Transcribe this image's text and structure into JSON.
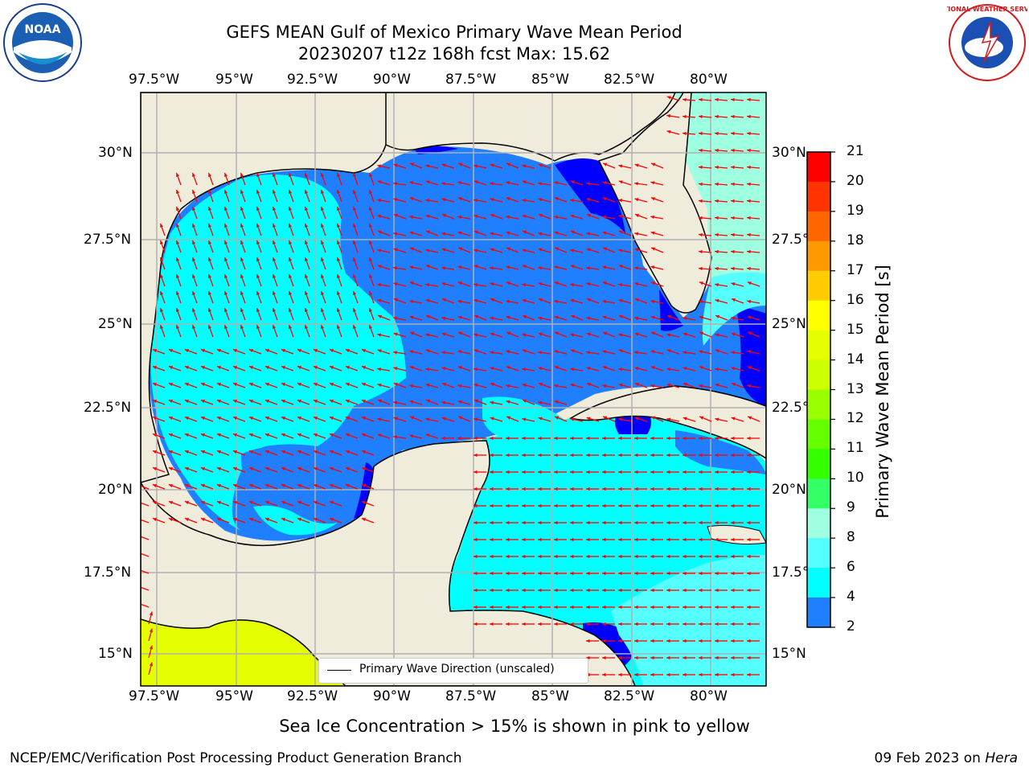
{
  "header": {
    "title_line1": "GEFS MEAN Gulf of Mexico Primary Wave Mean Period",
    "title_line2": "20230207 t12z 168h fcst   Max: 15.62"
  },
  "map": {
    "lon_ticks": [
      "97.5°W",
      "95°W",
      "92.5°W",
      "90°W",
      "87.5°W",
      "85°W",
      "82.5°W",
      "80°W"
    ],
    "lat_ticks_left": [
      "30°N",
      "27.5°N",
      "25°N",
      "22.5°N",
      "20°N",
      "17.5°N",
      "15°N"
    ],
    "lat_ticks_right": [
      "30°N",
      "27.5°N",
      "25°N",
      "22.5°N",
      "20°N",
      "17.5°N",
      "15°N"
    ],
    "legend_label": "Primary Wave Direction (unscaled)",
    "colors": {
      "land": "#efecdc",
      "band_2_4": "#0000ff",
      "band_4_6": "#1f7fff",
      "band_6_8": "#00ffff",
      "band_8_9": "#55ffff",
      "band_9_10": "#9effe1",
      "band_14_15": "#e5ff00",
      "arrows": "#ff0000",
      "grid": "#b0b0b0"
    }
  },
  "colorbar": {
    "label": "Primary Wave Mean Period [s]",
    "ticks": [
      "21",
      "20",
      "19",
      "18",
      "17",
      "16",
      "15",
      "14",
      "13",
      "12",
      "11",
      "10",
      "9",
      "8",
      "6",
      "4",
      "2"
    ],
    "colors": [
      "#ff0000",
      "#ff3300",
      "#ff6600",
      "#ff9900",
      "#ffcc00",
      "#ffff00",
      "#e5ff00",
      "#ccff00",
      "#99ff00",
      "#66ff00",
      "#33ff00",
      "#33ff66",
      "#9effe1",
      "#55ffff",
      "#00ffff",
      "#1f7fff",
      "#0000ff"
    ]
  },
  "note": "Sea Ice Concentration > 15% is shown in pink to yellow",
  "footer": {
    "left": "NCEP/EMC/Verification Post Processing Product Generation Branch",
    "date": "09 Feb 2023 on",
    "machine": "Hera"
  },
  "logos": {
    "noaa_text": "NOAA",
    "nws_text": "NATIONAL WEATHER SERVICE"
  }
}
